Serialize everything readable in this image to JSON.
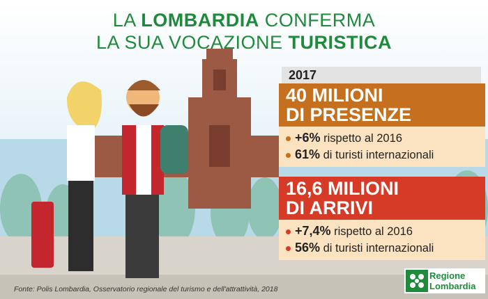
{
  "title": {
    "line1": [
      {
        "text": "LA"
      },
      {
        "text": "LOMBARDIA",
        "bold": true
      },
      {
        "text": "CONFERMA"
      }
    ],
    "line2": [
      {
        "text": "LA SUA VOCAZIONE"
      },
      {
        "text": "TURISTICA",
        "bold": true
      }
    ]
  },
  "year": "2017",
  "boxes": [
    {
      "heading": [
        "40 MILIONI",
        "DI PRESENZE"
      ],
      "bullets": [
        {
          "highlight": "+6%",
          "text": "rispetto al 2016"
        },
        {
          "highlight": "61%",
          "text": "di turisti internazionali"
        }
      ]
    },
    {
      "heading": [
        "16,6 MILIONI",
        "DI ARRIVI"
      ],
      "bullets": [
        {
          "highlight": "+7,4%",
          "text": "rispetto al 2016"
        },
        {
          "highlight": "56%",
          "text": "di turisti internazionali"
        }
      ]
    }
  ],
  "source": "Fonte: Polis Lombardia, Osservatorio regionale del turismo e dell'attrattività, 2018",
  "logo": [
    "Regione",
    "Lombardia"
  ]
}
